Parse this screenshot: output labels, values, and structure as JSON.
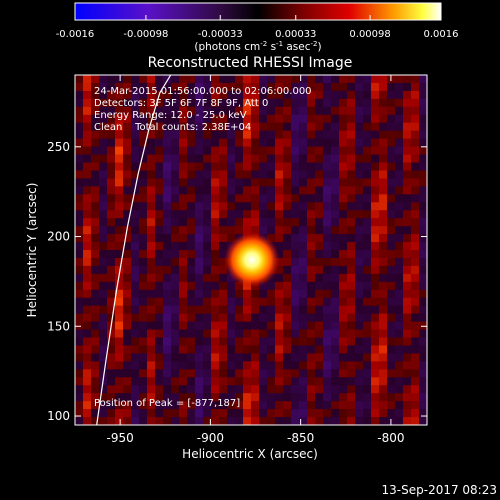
{
  "colorbar": {
    "ticks": [
      "-0.0016",
      "-0.00098",
      "-0.00033",
      "0.00033",
      "0.00098",
      "0.0016"
    ],
    "min": -0.0016,
    "max": 0.0016,
    "unit_main": "(photons cm",
    "unit_exp1": "-2",
    "unit_mid1": " s",
    "unit_exp2": "-1",
    "unit_mid2": " asec",
    "unit_exp3": "-2",
    "unit_end": ")"
  },
  "chart_data": {
    "type": "heatmap",
    "title": "Reconstructed RHESSI Image",
    "xlabel": "Heliocentric X (arcsec)",
    "ylabel": "Heliocentric Y (arcsec)",
    "xlim": [
      -975,
      -780
    ],
    "ylim": [
      95,
      290
    ],
    "x_ticks": [
      -950,
      -900,
      -850,
      -800
    ],
    "y_ticks": [
      100,
      150,
      200,
      250
    ],
    "peak_position": [
      -877,
      187
    ],
    "grid": false,
    "colormap": "blue-purple-black-red-yellow-white",
    "annotations": [
      "24-Mar-2015 01:56:00.000 to 02:06:00.000",
      "Detectors: 3F 5F 6F 7F 8F 9F, Att 0",
      "Energy Range: 12.0 - 25.0 keV",
      "Clean    Total counts: 2.38E+04"
    ],
    "peak_label": "Position of Peak = [-877,187]",
    "limb_curve": [
      [
        -963,
        95
      ],
      [
        -958,
        130
      ],
      [
        -952,
        170
      ],
      [
        -946,
        205
      ],
      [
        -940,
        235
      ],
      [
        -934,
        260
      ],
      [
        -928,
        280
      ],
      [
        -922,
        290
      ]
    ]
  },
  "timestamp": "13-Sep-2017 08:23"
}
